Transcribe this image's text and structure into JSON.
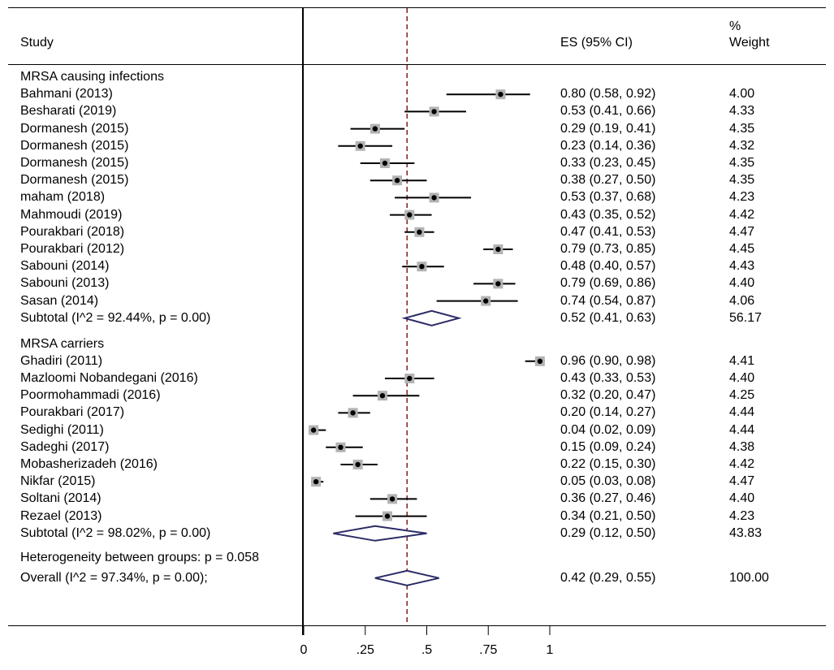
{
  "header": {
    "study": "Study",
    "es": "ES (95% CI)",
    "weight_line1": "%",
    "weight_line2": "Weight"
  },
  "colors": {
    "null_line": "#8b1a1a",
    "diamond": "#2b2b66",
    "box": "#b3b3b3",
    "line": "#000000"
  },
  "chart_data": {
    "type": "forest",
    "measure": "ES (95% CI)",
    "xlim": [
      0,
      1
    ],
    "x_ticks": [
      {
        "value": 0,
        "label": "0"
      },
      {
        "value": 0.25,
        "label": ".25"
      },
      {
        "value": 0.5,
        "label": ".5"
      },
      {
        "value": 0.75,
        "label": ".75"
      },
      {
        "value": 1,
        "label": "1"
      }
    ],
    "reference_line": 0.42,
    "groups": [
      {
        "name": "MRSA causing infections",
        "studies": [
          {
            "study": "Bahmani (2013)",
            "es": 0.8,
            "lo": 0.58,
            "hi": 0.92,
            "es_text": "0.80 (0.58, 0.92)",
            "weight": "4.00"
          },
          {
            "study": "Besharati (2019)",
            "es": 0.53,
            "lo": 0.41,
            "hi": 0.66,
            "es_text": "0.53 (0.41, 0.66)",
            "weight": "4.33"
          },
          {
            "study": "Dormanesh (2015)",
            "es": 0.29,
            "lo": 0.19,
            "hi": 0.41,
            "es_text": "0.29 (0.19, 0.41)",
            "weight": "4.35"
          },
          {
            "study": "Dormanesh (2015)",
            "es": 0.23,
            "lo": 0.14,
            "hi": 0.36,
            "es_text": "0.23 (0.14, 0.36)",
            "weight": "4.32"
          },
          {
            "study": "Dormanesh (2015)",
            "es": 0.33,
            "lo": 0.23,
            "hi": 0.45,
            "es_text": "0.33 (0.23, 0.45)",
            "weight": "4.35"
          },
          {
            "study": "Dormanesh (2015)",
            "es": 0.38,
            "lo": 0.27,
            "hi": 0.5,
            "es_text": "0.38 (0.27, 0.50)",
            "weight": "4.35"
          },
          {
            "study": "maham (2018)",
            "es": 0.53,
            "lo": 0.37,
            "hi": 0.68,
            "es_text": "0.53 (0.37, 0.68)",
            "weight": "4.23"
          },
          {
            "study": "Mahmoudi (2019)",
            "es": 0.43,
            "lo": 0.35,
            "hi": 0.52,
            "es_text": "0.43 (0.35, 0.52)",
            "weight": "4.42"
          },
          {
            "study": "Pourakbari (2018)",
            "es": 0.47,
            "lo": 0.41,
            "hi": 0.53,
            "es_text": "0.47 (0.41, 0.53)",
            "weight": "4.47"
          },
          {
            "study": "Pourakbari (2012)",
            "es": 0.79,
            "lo": 0.73,
            "hi": 0.85,
            "es_text": "0.79 (0.73, 0.85)",
            "weight": "4.45"
          },
          {
            "study": "Sabouni (2014)",
            "es": 0.48,
            "lo": 0.4,
            "hi": 0.57,
            "es_text": "0.48 (0.40, 0.57)",
            "weight": "4.43"
          },
          {
            "study": "Sabouni (2013)",
            "es": 0.79,
            "lo": 0.69,
            "hi": 0.86,
            "es_text": "0.79 (0.69, 0.86)",
            "weight": "4.40"
          },
          {
            "study": "Sasan (2014)",
            "es": 0.74,
            "lo": 0.54,
            "hi": 0.87,
            "es_text": "0.74 (0.54, 0.87)",
            "weight": "4.06"
          }
        ],
        "subtotal": {
          "label": "Subtotal  (I^2 = 92.44%, p = 0.00)",
          "es": 0.52,
          "lo": 0.41,
          "hi": 0.63,
          "es_text": "0.52 (0.41, 0.63)",
          "weight": "56.17"
        }
      },
      {
        "name": "MRSA carriers",
        "studies": [
          {
            "study": "Ghadiri (2011)",
            "es": 0.96,
            "lo": 0.9,
            "hi": 0.98,
            "es_text": "0.96 (0.90, 0.98)",
            "weight": "4.41"
          },
          {
            "study": "Mazloomi Nobandegani (2016)",
            "es": 0.43,
            "lo": 0.33,
            "hi": 0.53,
            "es_text": "0.43 (0.33, 0.53)",
            "weight": "4.40"
          },
          {
            "study": "Poormohammadi (2016)",
            "es": 0.32,
            "lo": 0.2,
            "hi": 0.47,
            "es_text": "0.32 (0.20, 0.47)",
            "weight": "4.25"
          },
          {
            "study": "Pourakbari (2017)",
            "es": 0.2,
            "lo": 0.14,
            "hi": 0.27,
            "es_text": "0.20 (0.14, 0.27)",
            "weight": "4.44"
          },
          {
            "study": "Sedighi (2011)",
            "es": 0.04,
            "lo": 0.02,
            "hi": 0.09,
            "es_text": "0.04 (0.02, 0.09)",
            "weight": "4.44"
          },
          {
            "study": "Sadeghi (2017)",
            "es": 0.15,
            "lo": 0.09,
            "hi": 0.24,
            "es_text": "0.15 (0.09, 0.24)",
            "weight": "4.38"
          },
          {
            "study": "Mobasherizadeh (2016)",
            "es": 0.22,
            "lo": 0.15,
            "hi": 0.3,
            "es_text": "0.22 (0.15, 0.30)",
            "weight": "4.42"
          },
          {
            "study": "Nikfar (2015)",
            "es": 0.05,
            "lo": 0.03,
            "hi": 0.08,
            "es_text": "0.05 (0.03, 0.08)",
            "weight": "4.47"
          },
          {
            "study": "Soltani (2014)",
            "es": 0.36,
            "lo": 0.27,
            "hi": 0.46,
            "es_text": "0.36 (0.27, 0.46)",
            "weight": "4.40"
          },
          {
            "study": "Rezael (2013)",
            "es": 0.34,
            "lo": 0.21,
            "hi": 0.5,
            "es_text": "0.34 (0.21, 0.50)",
            "weight": "4.23"
          }
        ],
        "subtotal": {
          "label": "Subtotal  (I^2 = 98.02%, p = 0.00)",
          "es": 0.29,
          "lo": 0.12,
          "hi": 0.5,
          "es_text": "0.29 (0.12, 0.50)",
          "weight": "43.83"
        }
      }
    ],
    "heterogeneity": "Heterogeneity between groups: p = 0.058",
    "overall": {
      "label": "Overall  (I^2 = 97.34%, p = 0.00);",
      "es": 0.42,
      "lo": 0.29,
      "hi": 0.55,
      "es_text": "0.42 (0.29, 0.55)",
      "weight": "100.00"
    }
  }
}
